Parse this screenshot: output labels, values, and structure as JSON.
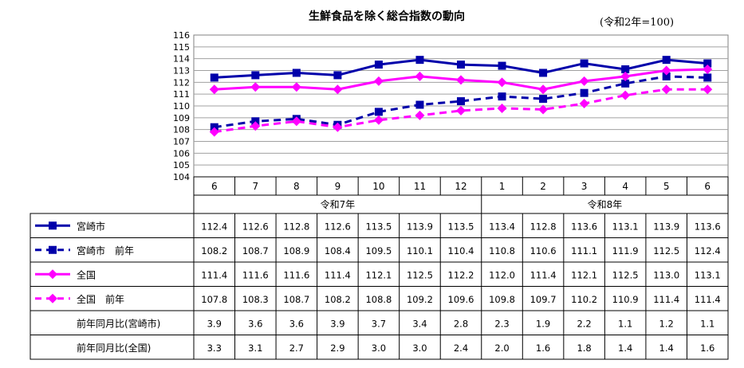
{
  "chart_data": {
    "type": "line",
    "title": "生鮮食品を除く総合指数の動向",
    "unit_note": "(令和2年=100)",
    "categories": [
      "6",
      "7",
      "8",
      "9",
      "10",
      "11",
      "12",
      "1",
      "2",
      "3",
      "4",
      "5",
      "6"
    ],
    "year_groups": [
      {
        "label": "令和7年",
        "months": 7
      },
      {
        "label": "令和8年",
        "months": 6
      }
    ],
    "ylim": [
      104,
      116
    ],
    "ytick_step": 1,
    "grid": true,
    "series": [
      {
        "name": "宮崎市",
        "color": "#0000aa",
        "dashed": false,
        "marker": "square",
        "values": [
          112.4,
          112.6,
          112.8,
          112.6,
          113.5,
          113.9,
          113.5,
          113.4,
          112.8,
          113.6,
          113.1,
          113.9,
          113.6
        ],
        "labels": [
          "112.4",
          "112.6",
          "112.8",
          "112.6",
          "113.5",
          "113.9",
          "113.5",
          "113.4",
          "112.8",
          "113.6",
          "113.1",
          "113.9",
          "113.6"
        ]
      },
      {
        "name": "宮崎市　前年",
        "color": "#0000aa",
        "dashed": true,
        "marker": "square",
        "values": [
          108.2,
          108.7,
          108.9,
          108.4,
          109.5,
          110.1,
          110.4,
          110.8,
          110.6,
          111.1,
          111.9,
          112.5,
          112.4
        ],
        "labels": [
          "108.2",
          "108.7",
          "108.9",
          "108.4",
          "109.5",
          "110.1",
          "110.4",
          "110.8",
          "110.6",
          "111.1",
          "111.9",
          "112.5",
          "112.4"
        ]
      },
      {
        "name": "全国",
        "color": "#ff00ff",
        "dashed": false,
        "marker": "diamond",
        "values": [
          111.4,
          111.6,
          111.6,
          111.4,
          112.1,
          112.5,
          112.2,
          112.0,
          111.4,
          112.1,
          112.5,
          113.0,
          113.1
        ],
        "labels": [
          "111.4",
          "111.6",
          "111.6",
          "111.4",
          "112.1",
          "112.5",
          "112.2",
          "112.0",
          "111.4",
          "112.1",
          "112.5",
          "113.0",
          "113.1"
        ]
      },
      {
        "name": "全国　前年",
        "color": "#ff00ff",
        "dashed": true,
        "marker": "diamond",
        "values": [
          107.8,
          108.3,
          108.7,
          108.2,
          108.8,
          109.2,
          109.6,
          109.8,
          109.7,
          110.2,
          110.9,
          111.4,
          111.4
        ],
        "labels": [
          "107.8",
          "108.3",
          "108.7",
          "108.2",
          "108.8",
          "109.2",
          "109.6",
          "109.8",
          "109.7",
          "110.2",
          "110.9",
          "111.4",
          "111.4"
        ]
      }
    ],
    "extra_rows": [
      {
        "name": "前年同月比(宮崎市)",
        "labels": [
          "3.9",
          "3.6",
          "3.6",
          "3.9",
          "3.7",
          "3.4",
          "2.8",
          "2.3",
          "1.9",
          "2.2",
          "1.1",
          "1.2",
          "1.1"
        ]
      },
      {
        "name": "前年同月比(全国)",
        "labels": [
          "3.3",
          "3.1",
          "2.7",
          "2.9",
          "3.0",
          "3.0",
          "2.4",
          "2.0",
          "1.6",
          "1.8",
          "1.4",
          "1.4",
          "1.6"
        ]
      }
    ]
  }
}
